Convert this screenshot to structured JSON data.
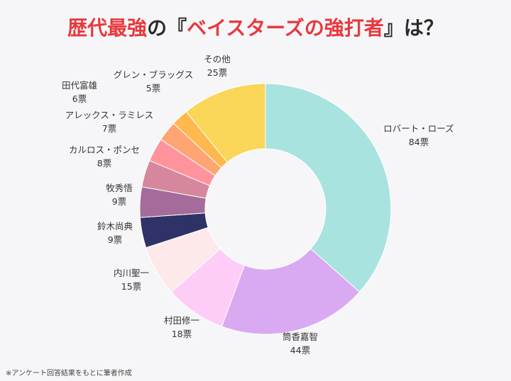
{
  "title": {
    "part1": "歴代最強",
    "part2": "の『",
    "part3": "ベイスターズの強打者",
    "part4": "』は？",
    "accent_color": "#e8383d",
    "text_color": "#2b2b2b"
  },
  "chart_data": {
    "type": "pie",
    "donut": true,
    "unit": "票",
    "slices": [
      {
        "label": "ロバート・ローズ",
        "value": 84,
        "color": "#a8e3e0"
      },
      {
        "label": "筒香嘉智",
        "value": 44,
        "color": "#d9aaf2"
      },
      {
        "label": "村田修一",
        "value": 18,
        "color": "#fdcdf8"
      },
      {
        "label": "内川聖一",
        "value": 15,
        "color": "#fde8ea"
      },
      {
        "label": "鈴木尚典",
        "value": 9,
        "color": "#2e3266"
      },
      {
        "label": "牧秀悟",
        "value": 9,
        "color": "#a56b9a"
      },
      {
        "label": "カルロス・ポンセ",
        "value": 8,
        "color": "#d6879d"
      },
      {
        "label": "アレックス・ラミレス",
        "value": 7,
        "color": "#ff939c"
      },
      {
        "label": "田代富雄",
        "value": 6,
        "color": "#ffa473"
      },
      {
        "label": "グレン・ブラッグス",
        "value": 5,
        "color": "#ffb84d"
      },
      {
        "label": "その他",
        "value": 25,
        "color": "#f9d657"
      }
    ]
  },
  "footnote": "※アンケート回答結果をもとに筆者作成"
}
